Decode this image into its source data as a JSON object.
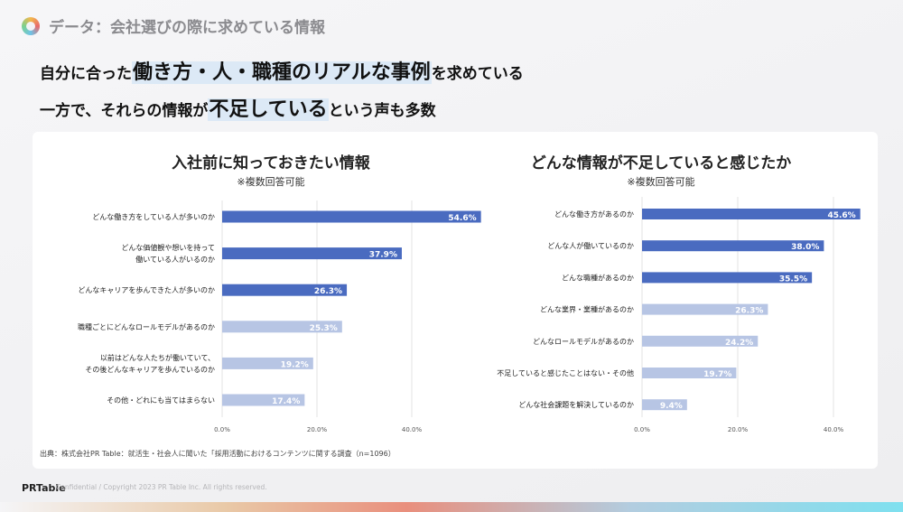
{
  "header": {
    "title": "データ：会社選びの際に求めている情報"
  },
  "headline": {
    "line1": {
      "a": "自分に合った",
      "b": "働き方・人・職種のリアルな事例",
      "c": "を求めている"
    },
    "line2": {
      "a": "一方で、それらの情報が",
      "b": "不足している",
      "c": "という声も多数"
    }
  },
  "colors": {
    "dark_bar": "#4a6bc0",
    "light_bar": "#b7c5e4",
    "highlight": "#dce9f6",
    "grid": "#e3e3e3"
  },
  "chart_data": [
    {
      "type": "bar",
      "orientation": "horizontal",
      "title": "入社前に知っておきたい情報",
      "subtitle": "※複数回答可能",
      "categories": [
        [
          "どんな働き方をしている人が多いのか"
        ],
        [
          "どんな価値観や想いを持って",
          "働いている人がいるのか"
        ],
        [
          "どんなキャリアを歩んできた人が多いのか"
        ],
        [
          "職種ごとにどんなロールモデルがあるのか"
        ],
        [
          "以前はどんな人たちが働いていて、",
          "その後どんなキャリアを歩んでいるのか"
        ],
        [
          "その他・どれにも当てはまらない"
        ]
      ],
      "values": [
        54.6,
        37.9,
        26.3,
        25.3,
        19.2,
        17.4
      ],
      "value_labels": [
        "54.6%",
        "37.9%",
        "26.3%",
        "25.3%",
        "19.2%",
        "17.4%"
      ],
      "highlight_count": 3,
      "xlim": [
        0,
        60
      ],
      "ticks": [
        0,
        20,
        40
      ],
      "tick_labels": [
        "0.0%",
        "20.0%",
        "40.0%"
      ],
      "grid": true
    },
    {
      "type": "bar",
      "orientation": "horizontal",
      "title": "どんな情報が不足していると感じたか",
      "subtitle": "※複数回答可能",
      "categories": [
        [
          "どんな働き方があるのか"
        ],
        [
          "どんな人が働いているのか"
        ],
        [
          "どんな職種があるのか"
        ],
        [
          "どんな業界・業種があるのか"
        ],
        [
          "どんなロールモデルがあるのか"
        ],
        [
          "不足していると感じたことはない・その他"
        ],
        [
          "どんな社会課題を解決しているのか"
        ]
      ],
      "values": [
        45.6,
        38.0,
        35.5,
        26.3,
        24.2,
        19.7,
        9.4
      ],
      "value_labels": [
        "45.6%",
        "38.0%",
        "35.5%",
        "26.3%",
        "24.2%",
        "19.7%",
        "9.4%"
      ],
      "highlight_count": 3,
      "xlim": [
        0,
        50
      ],
      "ticks": [
        0,
        20,
        40
      ],
      "tick_labels": [
        "0.0%",
        "20.0%",
        "40.0%"
      ],
      "grid": true
    }
  ],
  "source": "出典：株式会社PR Table：就活生・社会人に聞いた「採用活動におけるコンテンツに関する調査（n=1096）",
  "footer": {
    "brand": "PRTable",
    "copyright": "Confidential / Copyright 2023 PR Table Inc. All rights reserved."
  }
}
